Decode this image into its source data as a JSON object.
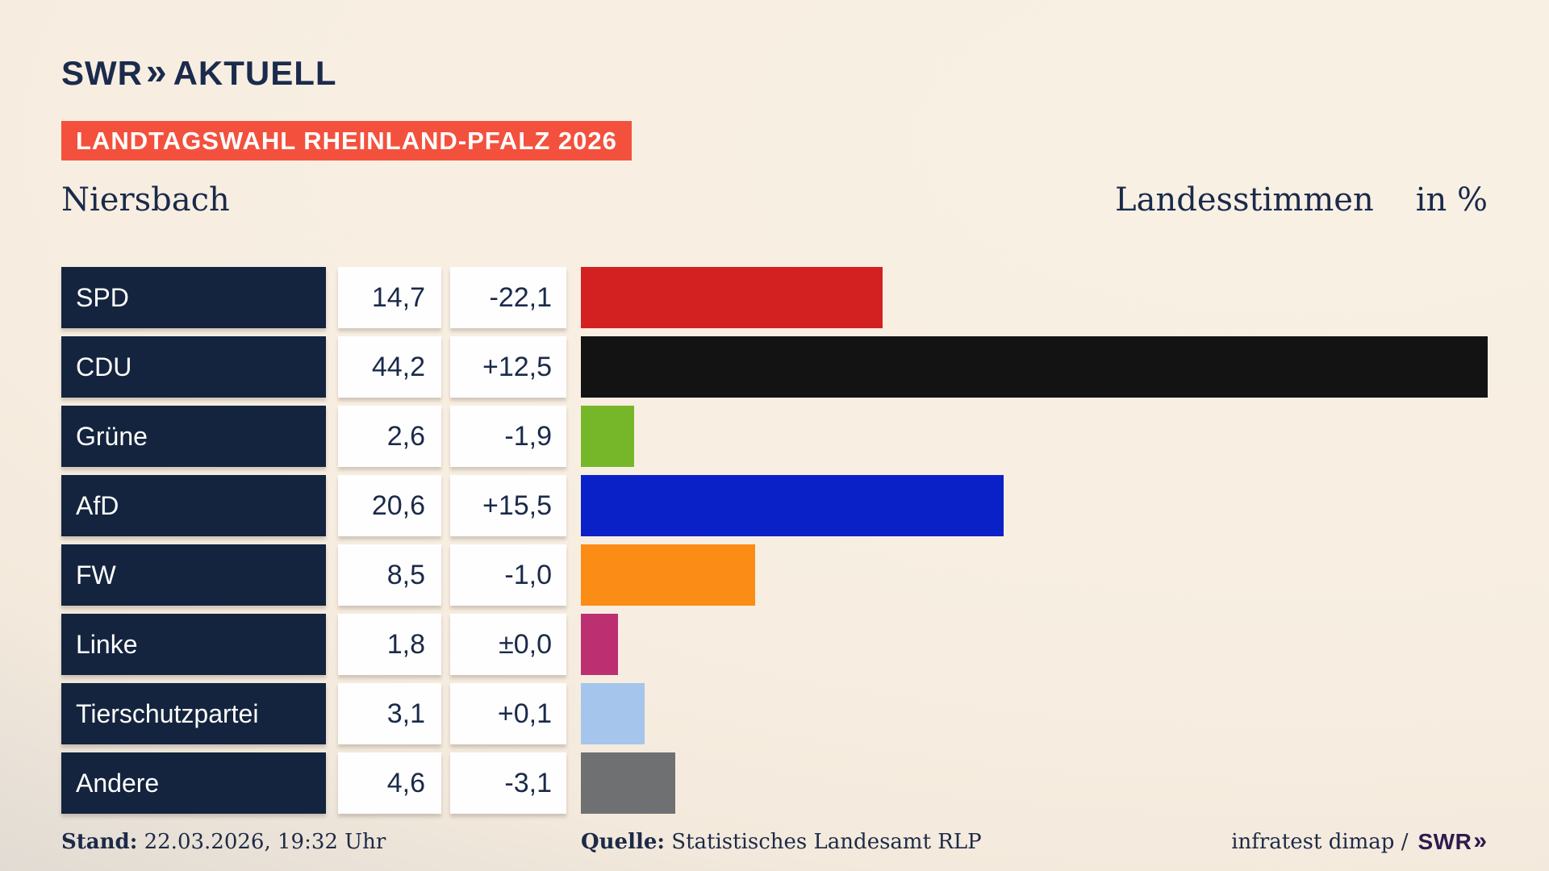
{
  "header": {
    "logo": {
      "brand": "SWR",
      "chevron": "»",
      "product": "AKTUELL"
    },
    "banner": "LANDTAGSWAHL RHEINLAND-PFALZ 2026",
    "municipality": "Niersbach",
    "measure_label": "Landesstimmen",
    "unit_label": "in %"
  },
  "chart_data": {
    "type": "bar",
    "orientation": "horizontal",
    "title": "Landtagswahl Rheinland-Pfalz 2026 – Niersbach – Landesstimmen in %",
    "unit": "%",
    "xlim": [
      0,
      45
    ],
    "grid": false,
    "legend": "none",
    "categories": [
      "SPD",
      "CDU",
      "Grüne",
      "AfD",
      "FW",
      "Linke",
      "Tierschutzpartei",
      "Andere"
    ],
    "values": [
      14.7,
      44.2,
      2.6,
      20.6,
      8.5,
      1.8,
      3.1,
      4.6
    ],
    "value_labels": [
      "14,7",
      "44,2",
      "2,6",
      "20,6",
      "8,5",
      "1,8",
      "3,1",
      "4,6"
    ],
    "change_values": [
      -22.1,
      12.5,
      -1.9,
      15.5,
      -1.0,
      0.0,
      0.1,
      -3.1
    ],
    "change_labels": [
      "-22,1",
      "+12,5",
      "-1,9",
      "+15,5",
      "-1,0",
      "±0,0",
      "+0,1",
      "-3,1"
    ],
    "bar_colors": [
      "#d32121",
      "#131313",
      "#76b72a",
      "#0b21c8",
      "#fb8c15",
      "#bc2f71",
      "#a5c5ed",
      "#6e7071"
    ]
  },
  "footer": {
    "stand_label": "Stand:",
    "stand_value": " 22.03.2026, 19:32 Uhr",
    "source_label": "Quelle:",
    "source_value": " Statistisches Landesamt RLP",
    "credit_text": "infratest dimap /",
    "credit_logo": {
      "brand": "SWR",
      "chevron": "»"
    }
  },
  "colors": {
    "background_cream": "#f7eee1",
    "background_shade": "#c8c6c3",
    "banner_red": "#f3513d",
    "label_box_navy": "#14243e",
    "text_navy": "#1b2a4a",
    "logo_navy": "#1b2b4d",
    "footer_logo_purple": "#2f1a4d",
    "value_box_white": "#fefefe"
  }
}
